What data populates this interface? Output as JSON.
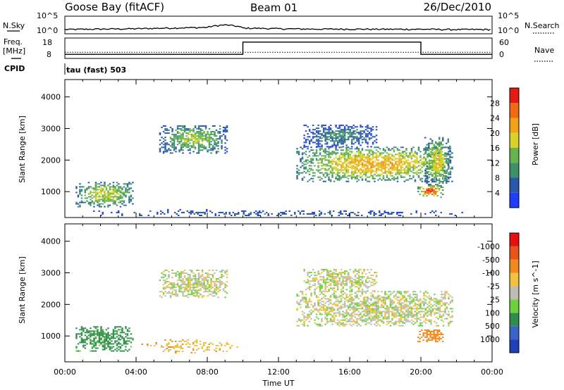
{
  "header": {
    "station": "Goose Bay (fitACF)",
    "beam": "Beam 01",
    "date": "26/Dec/2010"
  },
  "panel_labels": {
    "nsky": "N.Sky",
    "nsky_ticks": [
      "10^5",
      "10^0"
    ],
    "nsearch": "N.Search",
    "nsearch_ticks": [
      "10^5",
      "10^0"
    ],
    "freq_label_1": "Freq.",
    "freq_label_2": "[MHz]",
    "freq_ticks": [
      "18",
      "8"
    ],
    "nave": "Nave",
    "nave_ticks": [
      "60",
      "0"
    ],
    "cpid": "CPID",
    "cpid_text": "tau (fast) 503"
  },
  "colors": {
    "power": [
      "#1f3cff",
      "#2a58a8",
      "#3f8f6b",
      "#67b34d",
      "#d9d22a",
      "#f0a21a",
      "#f06a12",
      "#e61a10"
    ],
    "velocity": [
      "#203fb8",
      "#3a62c9",
      "#2f8f4a",
      "#6dd13e",
      "#bdbdb6",
      "#f3c23d",
      "#f08a1f",
      "#e8541a",
      "#e61010"
    ],
    "ground_scatter": "#bdbdb6"
  },
  "chart_data": [
    {
      "type": "line",
      "title": "N.Sky / N.Search",
      "ylabel": "N.Sky",
      "x_unit": "hours UT",
      "log_scale": true,
      "ylim": [
        "10^0",
        "10^5"
      ],
      "series": [
        {
          "name": "N.Sky",
          "x": [
            0,
            2,
            4,
            6,
            8,
            9,
            10,
            12,
            14,
            16,
            18,
            20,
            22,
            24
          ],
          "values": [
            15,
            20,
            25,
            40,
            60,
            300,
            40,
            25,
            20,
            20,
            18,
            18,
            15,
            15
          ]
        },
        {
          "name": "N.Search",
          "x": [
            0,
            24
          ],
          "values": [
            1,
            1
          ]
        }
      ]
    },
    {
      "type": "line",
      "title": "Freq. / Nave",
      "ylabel": "Freq. [MHz]",
      "ylim": [
        8,
        18
      ],
      "y2lim": [
        0,
        60
      ],
      "series": [
        {
          "name": "Freq.",
          "x": [
            0,
            10,
            10,
            20,
            20,
            24
          ],
          "values": [
            10,
            10,
            16,
            16,
            10,
            10
          ]
        },
        {
          "name": "Nave",
          "x": [
            0,
            24
          ],
          "values": [
            18,
            18
          ]
        }
      ]
    },
    {
      "type": "heatmap",
      "title": "Power",
      "xlabel": "Time UT",
      "ylabel": "Slant Range [km]",
      "colorbar_label": "Power [dB]",
      "colorbar_ticks": [
        "4",
        "8",
        "12",
        "16",
        "20",
        "24",
        "28"
      ],
      "x_ticks": [
        "00:00",
        "04:00",
        "08:00",
        "12:00",
        "16:00",
        "20:00",
        "00:00"
      ],
      "y_ticks": [
        "1000",
        "2000",
        "3000",
        "4000"
      ],
      "xlim": [
        0,
        24
      ],
      "ylim": [
        180,
        4550
      ],
      "regions": [
        {
          "t0": 5.3,
          "t1": 9.1,
          "r0": 2200,
          "r1": 3100,
          "peak": 16
        },
        {
          "t0": 13.0,
          "t1": 21.8,
          "r0": 1300,
          "r1": 2400,
          "peak": 22
        },
        {
          "t0": 13.4,
          "t1": 17.5,
          "r0": 2400,
          "r1": 3100,
          "peak": 10
        },
        {
          "t0": 19.8,
          "t1": 21.2,
          "r0": 800,
          "r1": 1200,
          "peak": 28
        },
        {
          "t0": 20.2,
          "t1": 21.6,
          "r0": 1200,
          "r1": 2700,
          "peak": 20
        },
        {
          "t0": 0.6,
          "t1": 3.8,
          "r0": 500,
          "r1": 1300,
          "peak": 18
        },
        {
          "t0": 0.0,
          "t1": 24.0,
          "r0": 180,
          "r1": 420,
          "peak": 6
        }
      ]
    },
    {
      "type": "heatmap",
      "title": "Velocity",
      "xlabel": "Time UT",
      "ylabel": "Slant Range [km]",
      "colorbar_label": "Velocity [m s^-1]",
      "colorbar_ticks": [
        "-1000",
        "-500",
        "-100",
        "-25",
        "25",
        "100",
        "500",
        "1000"
      ],
      "x_ticks": [
        "00:00",
        "04:00",
        "08:00",
        "12:00",
        "16:00",
        "20:00",
        "00:00"
      ],
      "y_ticks": [
        "1000",
        "2000",
        "3000",
        "4000"
      ],
      "xlim": [
        0,
        24
      ],
      "ylim": [
        180,
        4550
      ],
      "regions": [
        {
          "t0": 5.3,
          "t1": 9.1,
          "r0": 2200,
          "r1": 3100,
          "value": 0
        },
        {
          "t0": 13.0,
          "t1": 21.8,
          "r0": 1300,
          "r1": 2400,
          "value": 0
        },
        {
          "t0": 13.4,
          "t1": 17.5,
          "r0": 2400,
          "r1": 3100,
          "value": 0
        },
        {
          "t0": 19.8,
          "t1": 21.2,
          "r0": 800,
          "r1": 1200,
          "value": -300
        },
        {
          "t0": 0.6,
          "t1": 3.8,
          "r0": 500,
          "r1": 1300,
          "value": 150
        },
        {
          "t0": 4.0,
          "t1": 10.0,
          "r0": 400,
          "r1": 900,
          "value": -60
        }
      ]
    }
  ],
  "xaxis_title": "Time UT"
}
